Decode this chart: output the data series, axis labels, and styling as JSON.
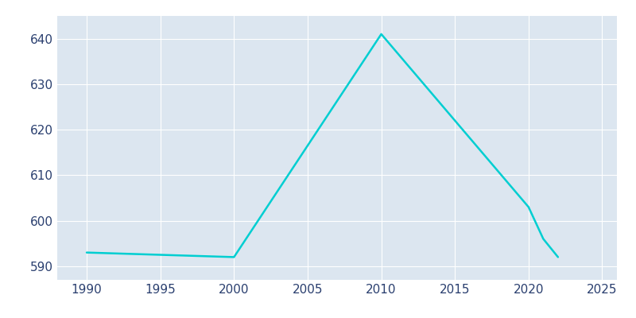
{
  "years": [
    1990,
    2000,
    2010,
    2020,
    2021,
    2022
  ],
  "population": [
    593,
    592,
    641,
    603,
    596,
    592
  ],
  "line_color": "#00CED1",
  "fig_bg_color": "#ffffff",
  "plot_bg_color": "#dce6f0",
  "grid_color": "#ffffff",
  "tick_label_color": "#2a3f6f",
  "xlim": [
    1988,
    2026
  ],
  "ylim": [
    587,
    645
  ],
  "xticks": [
    1990,
    1995,
    2000,
    2005,
    2010,
    2015,
    2020,
    2025
  ],
  "yticks": [
    590,
    600,
    610,
    620,
    630,
    640
  ],
  "line_width": 1.8
}
